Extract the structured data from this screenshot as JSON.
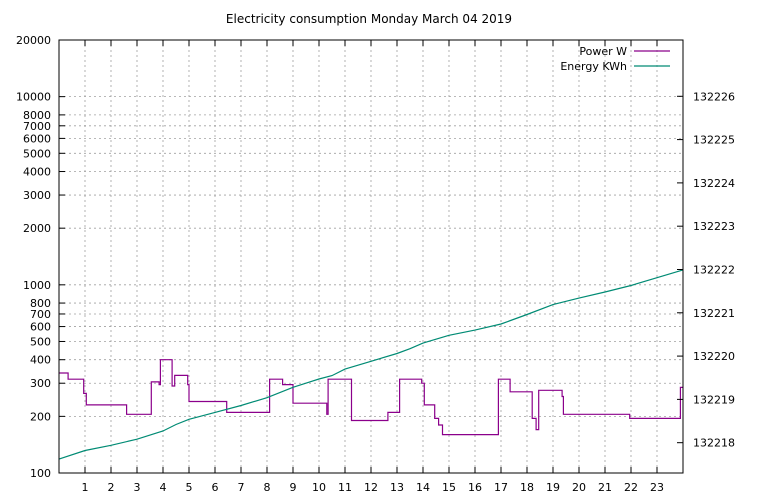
{
  "chart_data": {
    "type": "line",
    "title": "Electricity consumption Monday March 04 2019",
    "x": {
      "range": [
        0,
        24
      ],
      "ticks": [
        1,
        2,
        3,
        4,
        5,
        6,
        7,
        8,
        9,
        10,
        11,
        12,
        13,
        14,
        15,
        16,
        17,
        18,
        19,
        20,
        21,
        22,
        23
      ],
      "tick_labels": [
        "1",
        "2",
        "3",
        "4",
        "5",
        "6",
        "7",
        "8",
        "9",
        "10",
        "11",
        "12",
        "13",
        "14",
        "15",
        "16",
        "17",
        "18",
        "19",
        "20",
        "21",
        "22",
        "23"
      ]
    },
    "y_left": {
      "scale": "log",
      "range": [
        100,
        20000
      ],
      "ticks": [
        100,
        200,
        300,
        400,
        500,
        600,
        700,
        800,
        1000,
        2000,
        3000,
        4000,
        5000,
        6000,
        7000,
        8000,
        10000,
        20000
      ],
      "tick_labels": [
        "100",
        "200",
        "300",
        "400",
        "500",
        "600",
        "700",
        "800",
        "1000",
        "2000",
        "3000",
        "4000",
        "5000",
        "6000",
        "7000",
        "8000",
        "10000",
        "20000"
      ]
    },
    "y_right": {
      "scale": "linear",
      "range": [
        132217.3,
        132227.3
      ],
      "ticks": [
        132218,
        132219,
        132220,
        132221,
        132222,
        132223,
        132224,
        132225,
        132226
      ],
      "tick_labels": [
        "132218",
        "132219",
        "132220",
        "132221",
        "132222",
        "132223",
        "132224",
        "132225",
        "132226"
      ]
    },
    "grid": true,
    "legend_position": "top-right",
    "legend": [
      {
        "label": "Power W",
        "color": "#8b008b"
      },
      {
        "label": "Energy KWh",
        "color": "#008b74"
      }
    ],
    "series": [
      {
        "name": "Power W",
        "axis": "left",
        "color": "#8b008b",
        "step": true,
        "points": [
          [
            0,
            340
          ],
          [
            0.35,
            315
          ],
          [
            0.95,
            265
          ],
          [
            1.05,
            230
          ],
          [
            2.6,
            205
          ],
          [
            3.55,
            305
          ],
          [
            3.85,
            295
          ],
          [
            3.9,
            400
          ],
          [
            4.35,
            290
          ],
          [
            4.45,
            330
          ],
          [
            4.95,
            295
          ],
          [
            5.0,
            240
          ],
          [
            6.45,
            210
          ],
          [
            8.1,
            315
          ],
          [
            8.6,
            295
          ],
          [
            9.0,
            235
          ],
          [
            10.3,
            205
          ],
          [
            10.35,
            315
          ],
          [
            11.25,
            190
          ],
          [
            12.65,
            210
          ],
          [
            13.1,
            315
          ],
          [
            13.95,
            300
          ],
          [
            14.05,
            230
          ],
          [
            14.45,
            195
          ],
          [
            14.6,
            180
          ],
          [
            14.75,
            160
          ],
          [
            16.9,
            315
          ],
          [
            17.35,
            270
          ],
          [
            18.2,
            195
          ],
          [
            18.35,
            170
          ],
          [
            18.45,
            275
          ],
          [
            19.35,
            255
          ],
          [
            19.4,
            205
          ],
          [
            21.95,
            195
          ],
          [
            23.9,
            285
          ],
          [
            24,
            285
          ]
        ]
      },
      {
        "name": "Energy KWh",
        "axis": "right",
        "color": "#008b74",
        "step": false,
        "points": [
          [
            0,
            132217.62
          ],
          [
            1,
            132217.82
          ],
          [
            2,
            132217.94
          ],
          [
            3,
            132218.08
          ],
          [
            4,
            132218.27
          ],
          [
            4.5,
            132218.42
          ],
          [
            5,
            132218.54
          ],
          [
            6,
            132218.7
          ],
          [
            7,
            132218.86
          ],
          [
            8,
            132219.04
          ],
          [
            9,
            132219.28
          ],
          [
            10,
            132219.47
          ],
          [
            10.5,
            132219.55
          ],
          [
            11,
            132219.7
          ],
          [
            12,
            132219.88
          ],
          [
            13,
            132220.06
          ],
          [
            13.5,
            132220.17
          ],
          [
            14,
            132220.3
          ],
          [
            15,
            132220.48
          ],
          [
            16,
            132220.6
          ],
          [
            17,
            132220.74
          ],
          [
            18,
            132220.96
          ],
          [
            19,
            132221.19
          ],
          [
            20,
            132221.34
          ],
          [
            21,
            132221.48
          ],
          [
            22,
            132221.63
          ],
          [
            23,
            132221.81
          ],
          [
            24,
            132221.99
          ]
        ]
      }
    ]
  }
}
